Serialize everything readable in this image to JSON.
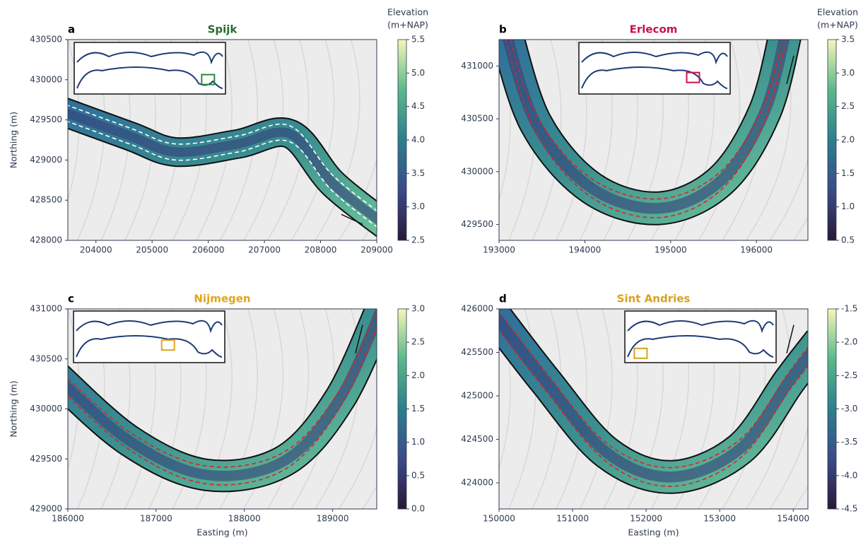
{
  "chart_data": [
    {
      "type": "map",
      "panel_label": "a",
      "title": "Spijk",
      "title_color": "#2a6b33",
      "ylabel": "Northing (m)",
      "xlim": [
        203500,
        209000
      ],
      "xticks": [
        204000,
        205000,
        206000,
        207000,
        208000,
        209000
      ],
      "ylim": [
        428000,
        430500
      ],
      "yticks": [
        428000,
        428500,
        429000,
        429500,
        430000,
        430500
      ],
      "colorbar": {
        "label": [
          "Elevation",
          "(m+NAP)"
        ],
        "lim": [
          2.5,
          5.5
        ],
        "ticks": [
          2.5,
          {
            "value": 3,
            "label": "3.0"
          },
          3.5,
          {
            "value": 4,
            "label": "4.0"
          },
          4.5,
          {
            "value": 5,
            "label": "5.0"
          },
          5.5
        ]
      }
    },
    {
      "type": "map",
      "panel_label": "b",
      "title": "Erlecom",
      "title_color": "#c8134f",
      "xlim": [
        193000,
        196600
      ],
      "xticks": [
        193000,
        194000,
        195000,
        196000
      ],
      "ylim": [
        429350,
        431250
      ],
      "yticks": [
        429500,
        430000,
        430500,
        431000
      ],
      "colorbar": {
        "label": [
          "Elevation",
          "(m+NAP)"
        ],
        "lim": [
          0.5,
          3.5
        ],
        "ticks": [
          0.5,
          {
            "value": 1,
            "label": "1.0"
          },
          1.5,
          {
            "value": 2,
            "label": "2.0"
          },
          2.5,
          {
            "value": 3,
            "label": "3.0"
          },
          3.5
        ]
      }
    },
    {
      "type": "map",
      "panel_label": "c",
      "title": "Nijmegen",
      "title_color": "#e3a41c",
      "xlabel": "Easting (m)",
      "ylabel": "Northing (m)",
      "xlim": [
        186000,
        189500
      ],
      "xticks": [
        186000,
        187000,
        188000,
        189000
      ],
      "ylim": [
        429000,
        431000
      ],
      "yticks": [
        429000,
        429500,
        430000,
        430500,
        431000
      ],
      "colorbar": {
        "lim": [
          0,
          3
        ],
        "ticks": [
          {
            "value": 0,
            "label": "0.0"
          },
          0.5,
          {
            "value": 1,
            "label": "1.0"
          },
          1.5,
          {
            "value": 2,
            "label": "2.0"
          },
          2.5,
          {
            "value": 3,
            "label": "3.0"
          }
        ]
      }
    },
    {
      "type": "map",
      "panel_label": "d",
      "title": "Sint Andries",
      "title_color": "#d9a21e",
      "xlabel": "Easting (m)",
      "xlim": [
        150000,
        154200
      ],
      "xticks": [
        150000,
        151000,
        152000,
        153000,
        154000
      ],
      "ylim": [
        423700,
        426000
      ],
      "yticks": [
        424000,
        424500,
        425000,
        425500,
        426000
      ],
      "colorbar": {
        "lim": [
          -4.5,
          -1.5
        ],
        "ticks": [
          -4.5,
          {
            "value": -4,
            "label": "-4.0"
          },
          -3.5,
          {
            "value": -3,
            "label": "-3.0"
          },
          -2.5,
          {
            "value": -2,
            "label": "-2.0"
          },
          -1.5
        ]
      }
    }
  ]
}
